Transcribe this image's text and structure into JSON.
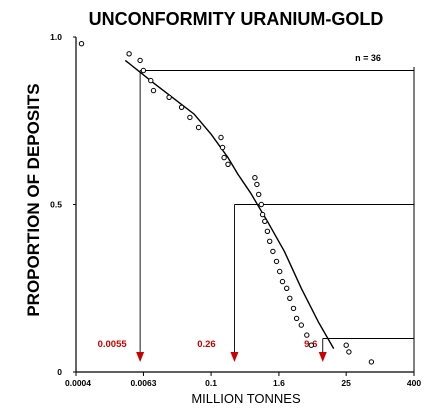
{
  "chart_data": {
    "type": "scatter",
    "title": "UNCONFORMITY URANIUM-GOLD",
    "xlabel": "MILLION TONNES",
    "ylabel": "PROPORTION OF DEPOSITS",
    "x_scale": "log",
    "xlim": [
      0.0004,
      400
    ],
    "ylim": [
      0,
      1
    ],
    "x_ticks": [
      "0.0004",
      "0.0063",
      "0.1",
      "1.6",
      "25",
      "400"
    ],
    "x_tick_values": [
      0.0004,
      0.0063,
      0.1,
      1.6,
      25,
      400
    ],
    "y_ticks": [
      "1.0",
      "0.5",
      "0"
    ],
    "y_tick_values": [
      1.0,
      0.5,
      0
    ],
    "n_label": "n = 36",
    "series": [
      {
        "points": [
          [
            0.0005,
            0.98
          ],
          [
            0.0035,
            0.95
          ],
          [
            0.0055,
            0.93
          ],
          [
            0.0063,
            0.9
          ],
          [
            0.0085,
            0.87
          ],
          [
            0.0095,
            0.84
          ],
          [
            0.018,
            0.82
          ],
          [
            0.03,
            0.79
          ],
          [
            0.042,
            0.76
          ],
          [
            0.06,
            0.73
          ],
          [
            0.15,
            0.7
          ],
          [
            0.16,
            0.67
          ],
          [
            0.17,
            0.64
          ],
          [
            0.2,
            0.62
          ],
          [
            0.6,
            0.58
          ],
          [
            0.65,
            0.56
          ],
          [
            0.7,
            0.53
          ],
          [
            0.78,
            0.5
          ],
          [
            0.82,
            0.47
          ],
          [
            0.9,
            0.45
          ],
          [
            1.0,
            0.42
          ],
          [
            1.1,
            0.39
          ],
          [
            1.25,
            0.36
          ],
          [
            1.45,
            0.33
          ],
          [
            1.65,
            0.3
          ],
          [
            1.85,
            0.27
          ],
          [
            2.2,
            0.25
          ],
          [
            2.5,
            0.22
          ],
          [
            2.9,
            0.19
          ],
          [
            3.3,
            0.16
          ],
          [
            4.0,
            0.14
          ],
          [
            5.0,
            0.11
          ],
          [
            6.0,
            0.08
          ],
          [
            25,
            0.08
          ],
          [
            28,
            0.06
          ],
          [
            70,
            0.03
          ]
        ]
      }
    ],
    "fit_curve": [
      [
        0.003,
        0.93
      ],
      [
        0.01,
        0.86
      ],
      [
        0.05,
        0.77
      ],
      [
        0.1,
        0.71
      ],
      [
        0.2,
        0.64
      ],
      [
        0.3,
        0.59
      ],
      [
        0.5,
        0.535
      ],
      [
        1.0,
        0.45
      ],
      [
        2.0,
        0.36
      ],
      [
        4.0,
        0.25
      ],
      [
        8.0,
        0.15
      ],
      [
        15.0,
        0.07
      ]
    ],
    "quantiles": [
      {
        "proportion": 0.9,
        "tonnes": 0.0055,
        "label": "0.0055"
      },
      {
        "proportion": 0.5,
        "tonnes": 0.26,
        "label": "0.26"
      },
      {
        "proportion": 0.1,
        "tonnes": 9.6,
        "label": "9.6"
      }
    ],
    "annotation_color": "#cc0000",
    "grid": false
  }
}
